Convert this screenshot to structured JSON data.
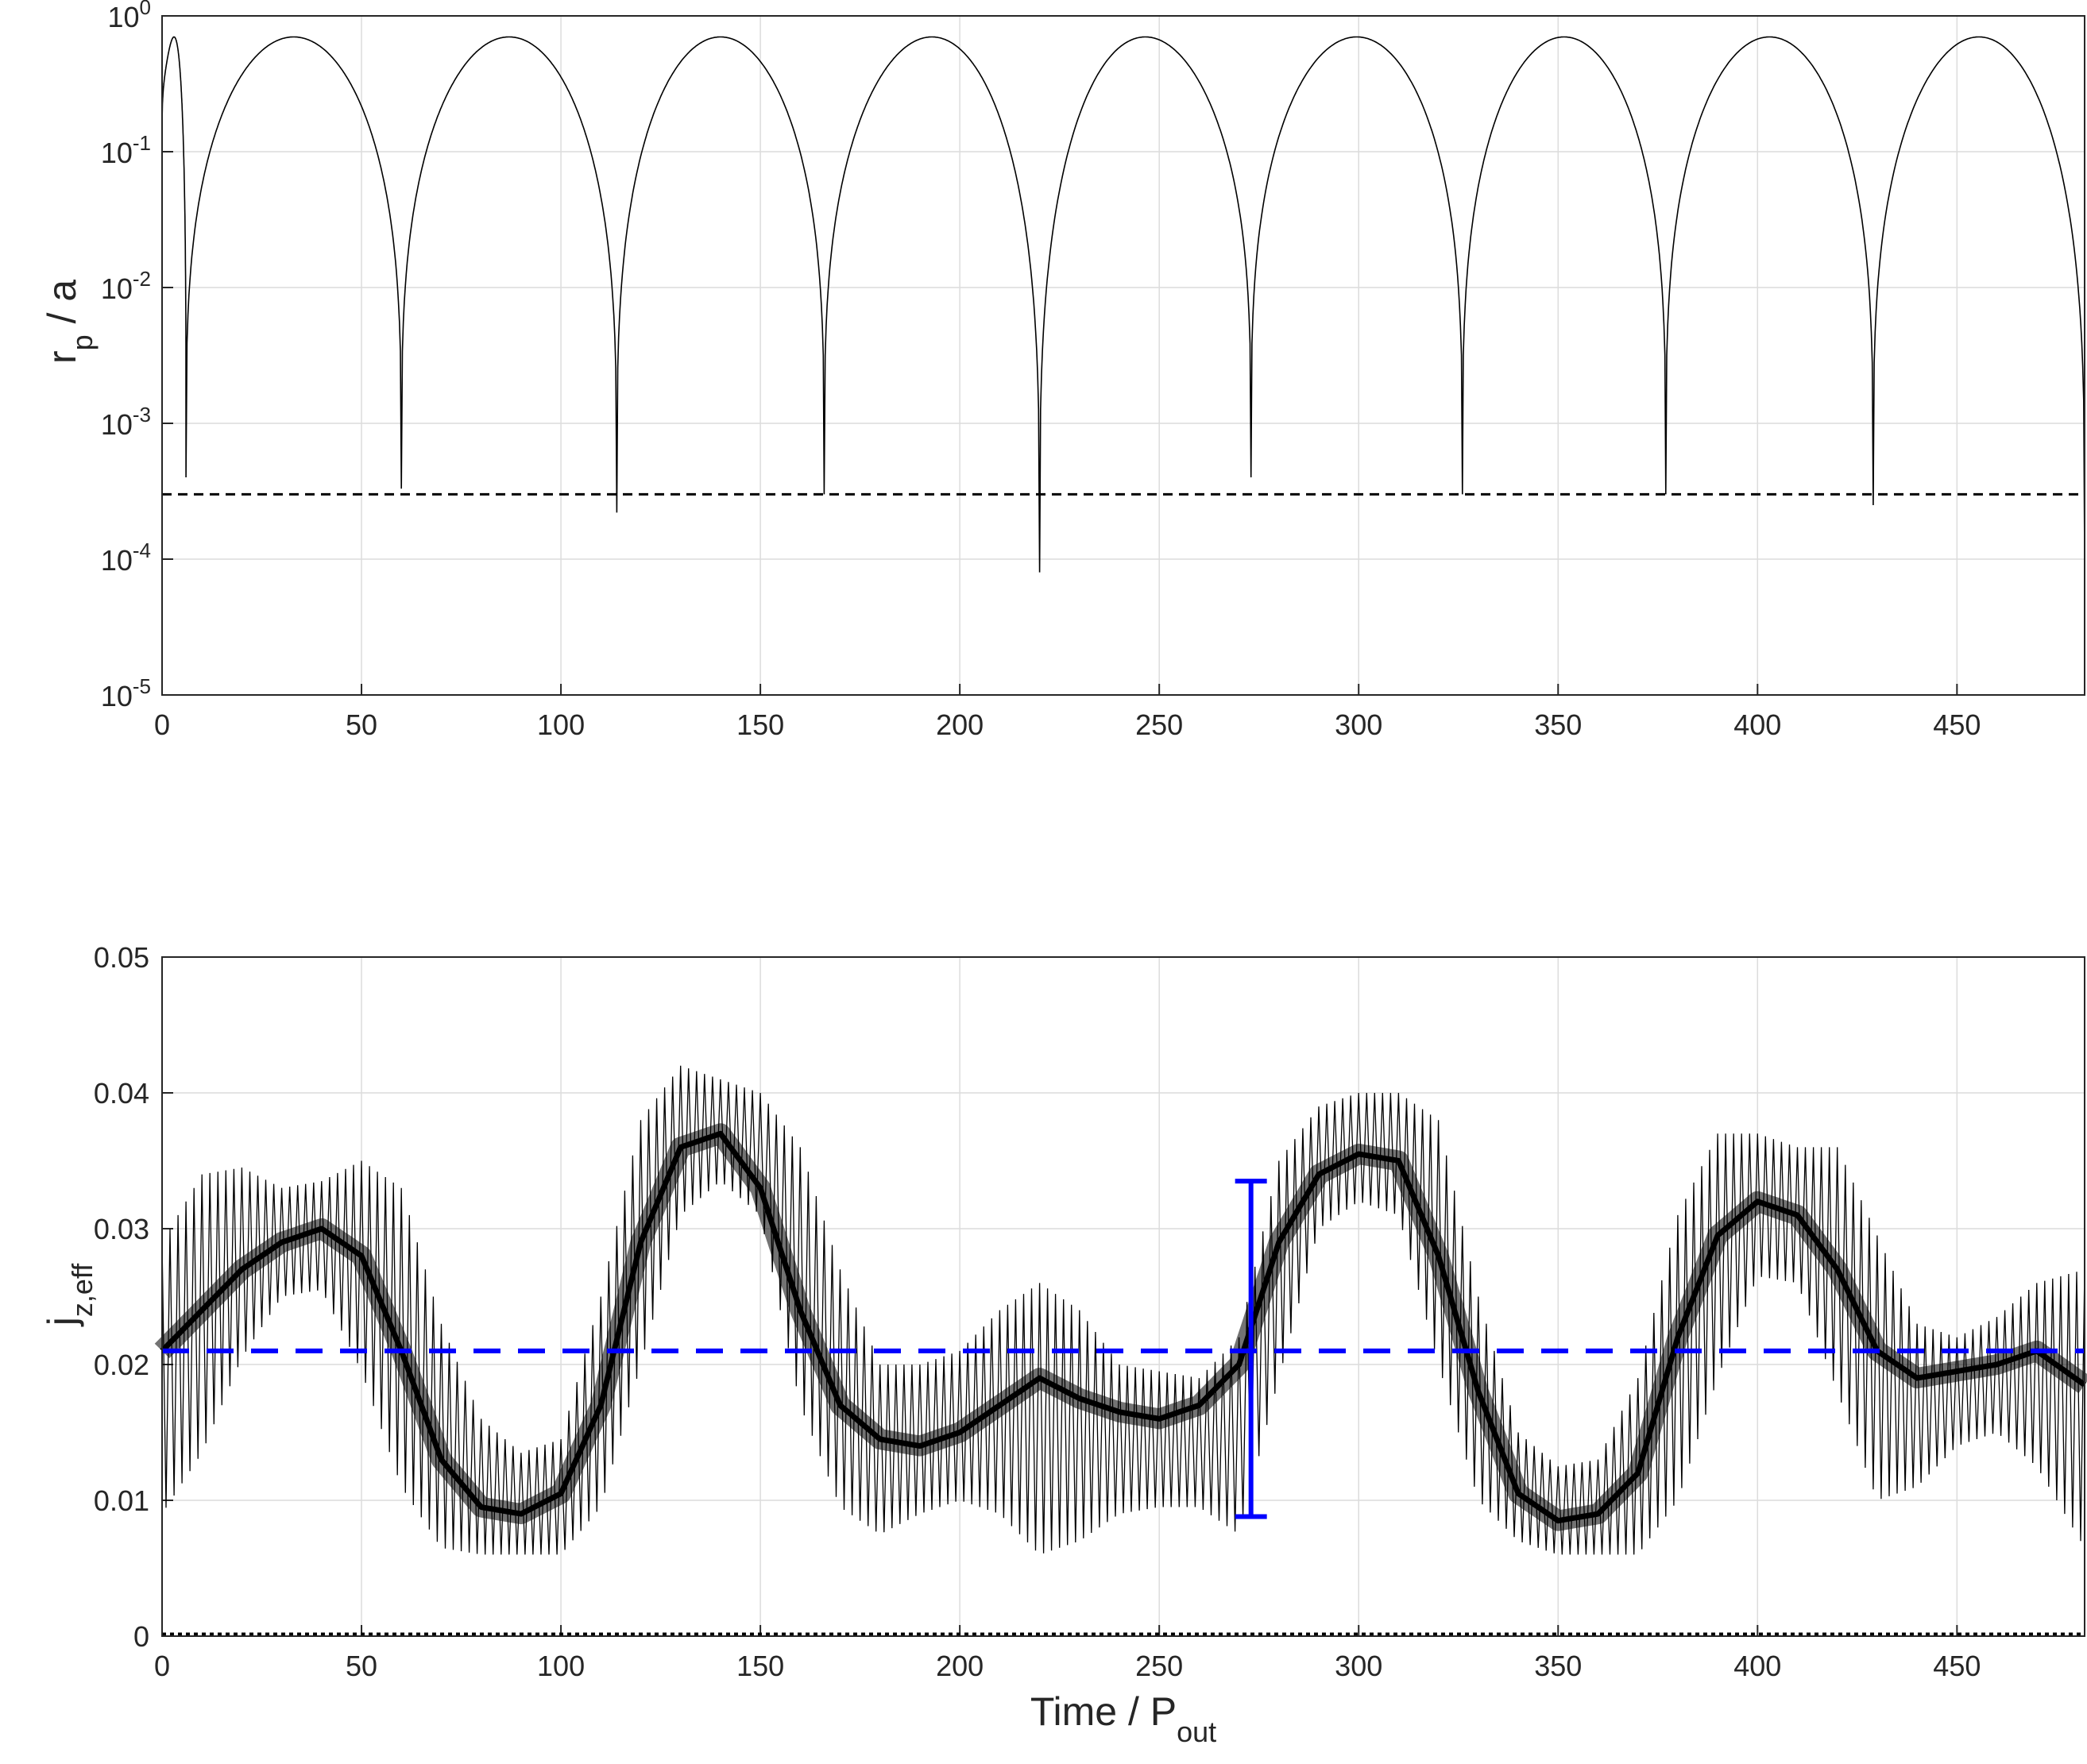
{
  "colors": {
    "trace": "#000000",
    "reference_line": "#000000",
    "blue": "#0000ff",
    "grid": "#dcdcdc",
    "axes": "#262626"
  },
  "chart_data": [
    {
      "type": "line",
      "panel": "top",
      "ylabel": {
        "main": "r",
        "sub": "p",
        "rest": " / a"
      },
      "xlabel": "",
      "xlim": [
        0,
        482
      ],
      "ylim": [
        1e-05,
        1
      ],
      "yscale": "log",
      "grid": true,
      "x_ticks": [
        "0",
        "50",
        "100",
        "150",
        "200",
        "250",
        "300",
        "350",
        "400",
        "450"
      ],
      "y_ticks": [
        {
          "base": "10",
          "exp": "-5"
        },
        {
          "base": "10",
          "exp": "-4"
        },
        {
          "base": "10",
          "exp": "-3"
        },
        {
          "base": "10",
          "exp": "-2"
        },
        {
          "base": "10",
          "exp": "-1"
        },
        {
          "base": "10",
          "exp": "0"
        }
      ],
      "series": [
        {
          "style": "thin solid black, periodic arches",
          "peak_value": 0.7,
          "cycle_minima": [
            {
              "x": 0,
              "y": 0.1
            },
            {
              "x": 6,
              "y": 0.0004
            },
            {
              "x": 60,
              "y": 0.00033
            },
            {
              "x": 114,
              "y": 0.00022
            },
            {
              "x": 166,
              "y": 0.0003
            },
            {
              "x": 220,
              "y": 8e-05
            },
            {
              "x": 273,
              "y": 0.0004
            },
            {
              "x": 326,
              "y": 0.0003
            },
            {
              "x": 377,
              "y": 0.0003
            },
            {
              "x": 429,
              "y": 0.00025
            },
            {
              "x": 482,
              "y": 0.0001
            }
          ]
        }
      ],
      "reference_lines": [
        {
          "y": 0.0003,
          "style": "dashed",
          "color": "black"
        }
      ]
    },
    {
      "type": "line",
      "panel": "bottom",
      "xlabel": {
        "main": "Time  / P",
        "sub": "out"
      },
      "ylabel": {
        "main": "j",
        "sub": "z,eff"
      },
      "xlim": [
        0,
        482
      ],
      "ylim": [
        0,
        0.05
      ],
      "grid": true,
      "x_ticks": [
        "0",
        "50",
        "100",
        "150",
        "200",
        "250",
        "300",
        "350",
        "400",
        "450"
      ],
      "y_ticks": [
        "0",
        "0.01",
        "0.02",
        "0.03",
        "0.04",
        "0.05"
      ],
      "series": [
        {
          "style": "dense black oscillating band around a smooth mean",
          "oscillation_period": 2,
          "envelope": {
            "x": [
              0,
              10,
              20,
              30,
              40,
              50,
              60,
              70,
              80,
              90,
              100,
              110,
              120,
              130,
              140,
              150,
              160,
              170,
              180,
              190,
              200,
              210,
              220,
              230,
              240,
              250,
              260,
              270,
              280,
              290,
              300,
              310,
              320,
              330,
              340,
              350,
              360,
              370,
              380,
              390,
              400,
              410,
              420,
              430,
              440,
              450,
              460,
              470,
              482
            ],
            "mean": [
              0.021,
              0.024,
              0.027,
              0.029,
              0.03,
              0.028,
              0.021,
              0.013,
              0.0095,
              0.009,
              0.0105,
              0.017,
              0.029,
              0.036,
              0.037,
              0.033,
              0.024,
              0.017,
              0.0145,
              0.014,
              0.015,
              0.017,
              0.019,
              0.0175,
              0.0165,
              0.016,
              0.017,
              0.02,
              0.029,
              0.034,
              0.0355,
              0.035,
              0.028,
              0.018,
              0.0105,
              0.0085,
              0.009,
              0.012,
              0.022,
              0.0295,
              0.032,
              0.031,
              0.027,
              0.021,
              0.019,
              0.0195,
              0.02,
              0.021,
              0.0185
            ],
            "upper": [
              0.029,
              0.034,
              0.0345,
              0.033,
              0.0335,
              0.035,
              0.033,
              0.023,
              0.016,
              0.0135,
              0.0145,
              0.025,
              0.038,
              0.042,
              0.041,
              0.04,
              0.036,
              0.027,
              0.02,
              0.02,
              0.021,
              0.024,
              0.026,
              0.024,
              0.02,
              0.0195,
              0.019,
              0.022,
              0.035,
              0.039,
              0.04,
              0.04,
              0.038,
              0.025,
              0.015,
              0.0125,
              0.013,
              0.019,
              0.031,
              0.037,
              0.037,
              0.036,
              0.036,
              0.0295,
              0.023,
              0.022,
              0.0235,
              0.026,
              0.027
            ],
            "lower": [
              0.009,
              0.0135,
              0.0205,
              0.025,
              0.0255,
              0.0195,
              0.011,
              0.0065,
              0.006,
              0.006,
              0.006,
              0.0095,
              0.02,
              0.031,
              0.0335,
              0.031,
              0.017,
              0.0095,
              0.0075,
              0.009,
              0.01,
              0.009,
              0.006,
              0.007,
              0.009,
              0.0095,
              0.0095,
              0.0075,
              0.019,
              0.03,
              0.032,
              0.031,
              0.02,
              0.01,
              0.007,
              0.006,
              0.006,
              0.006,
              0.01,
              0.019,
              0.0265,
              0.026,
              0.018,
              0.01,
              0.011,
              0.014,
              0.015,
              0.0125,
              0.0065
            ]
          }
        }
      ],
      "reference_lines": [
        {
          "y": 0.021,
          "style": "dashed",
          "color": "blue"
        },
        {
          "y": 0,
          "style": "dotted",
          "color": "black"
        }
      ],
      "error_bar": {
        "x": 273,
        "y_low": 0.0088,
        "y_high": 0.0335,
        "color": "blue"
      }
    }
  ]
}
